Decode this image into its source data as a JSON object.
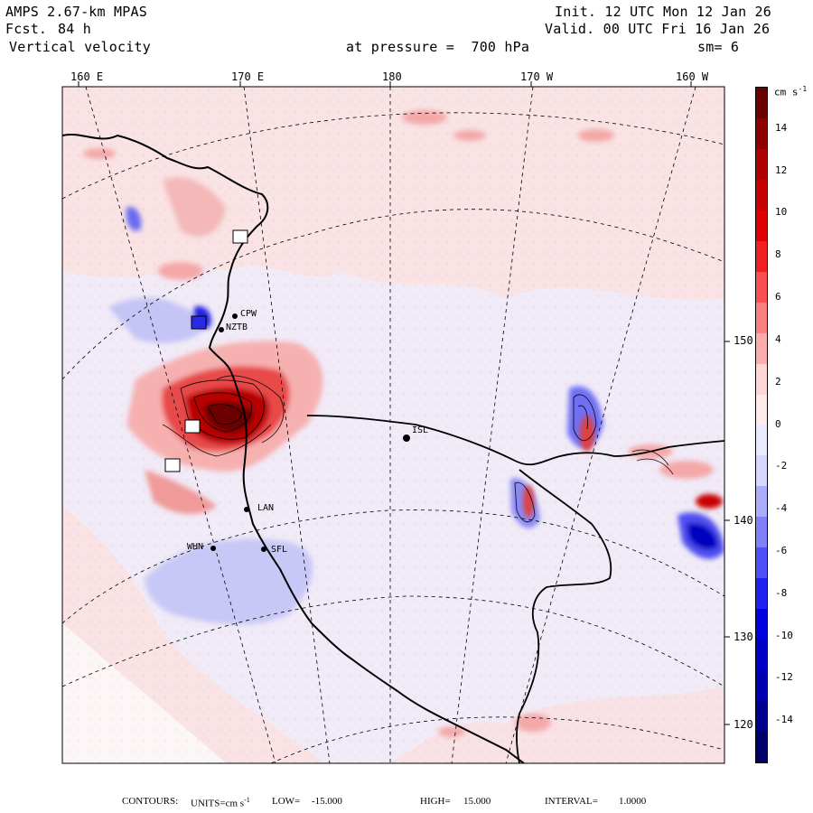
{
  "header": {
    "model": "AMPS 2.67-km MPAS",
    "forecast_label": "Fcst.",
    "forecast_hours": "84 h",
    "field": "Vertical velocity",
    "init": "Init. 12 UTC Mon 12 Jan 26",
    "valid": "Valid. 00 UTC Fri 16 Jan 26",
    "level": "at pressure =  700 hPa",
    "smoothing": "sm= 6"
  },
  "lon_labels": [
    "160 E",
    "170 E",
    "180",
    "170 W",
    "160 W"
  ],
  "lat_labels": [
    "150 W",
    "140 W",
    "130 W",
    "120 W"
  ],
  "stations": [
    "CPW",
    "NZTB",
    "LAN",
    "WHN",
    "SFL",
    "ISL"
  ],
  "colorbar": {
    "units": "cm s",
    "units_exp": "-1",
    "ticks": [
      "14",
      "12",
      "10",
      "8",
      "6",
      "4",
      "2",
      "0",
      "-2",
      "-4",
      "-6",
      "-8",
      "-10",
      "-12",
      "-14"
    ],
    "colors": [
      "#6b0000",
      "#8f0000",
      "#b00000",
      "#c80000",
      "#e00000",
      "#f02020",
      "#f85050",
      "#fa8080",
      "#fcacac",
      "#fed6d6",
      "#ffeaea",
      "#eaeaff",
      "#d6d6fe",
      "#acacfc",
      "#8080fa",
      "#5050f8",
      "#2020f0",
      "#0000e0",
      "#0000c8",
      "#0000b0",
      "#00008f",
      "#00006b"
    ]
  },
  "footer": {
    "contours_label": "CONTOURS:",
    "units_label": "UNITS=cm s",
    "units_exp": "-1",
    "low_label": "LOW=",
    "low_value": "-15.000",
    "high_label": "HIGH=",
    "high_value": "15.000",
    "interval_label": "INTERVAL=",
    "interval_value": "1.0000"
  }
}
